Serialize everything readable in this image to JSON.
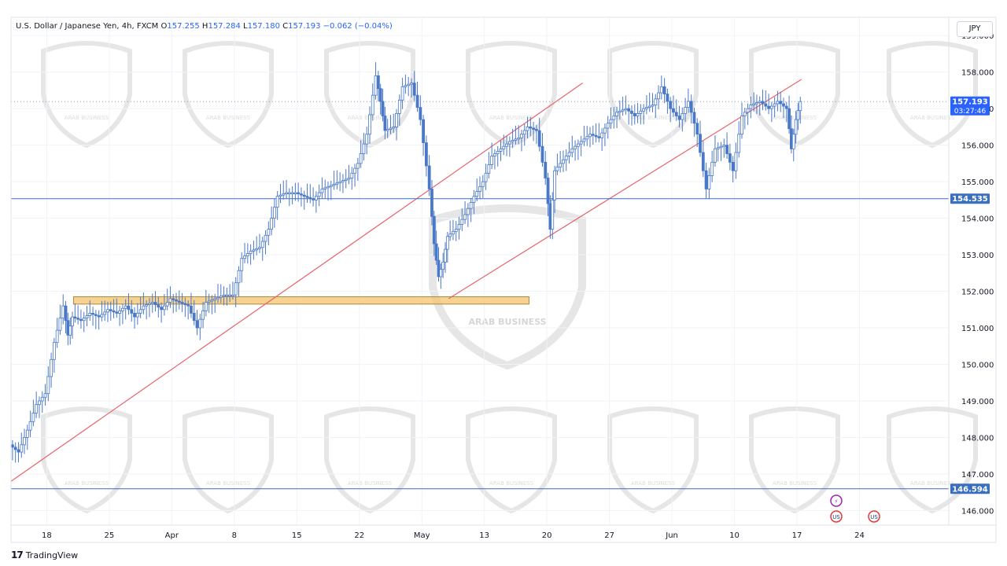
{
  "header": {
    "symbol": "U.S. Dollar / Japanese Yen, 4h, FXCM",
    "open_label": "O",
    "open": "157.255",
    "high_label": "H",
    "high": "157.284",
    "low_label": "L",
    "low": "157.180",
    "close_label": "C",
    "close": "157.193",
    "change": "−0.062 (−0.04%)"
  },
  "currency_button": "JPY",
  "footer": {
    "logo": "17",
    "brand": "TradingView"
  },
  "watermark_text": "ARAB BUSINESS",
  "colors": {
    "candle": "#4a78c8",
    "trendline": "#e8636b",
    "hline": "#3a6fbf",
    "zone_fill": "#f5c36b",
    "zone_stroke": "#a88b3a",
    "price_badge": "#2962ff",
    "grid": "#f0f3fa"
  },
  "chart_data": {
    "type": "candlestick",
    "ylim": [
      145.6,
      159.5
    ],
    "y_ticks": [
      "159.000",
      "158.000",
      "157.000",
      "156.000",
      "155.000",
      "154.000",
      "153.000",
      "152.000",
      "151.000",
      "150.000",
      "149.000",
      "148.000",
      "147.000",
      "146.000"
    ],
    "x_ticks": [
      "18",
      "25",
      "Apr",
      "8",
      "15",
      "22",
      "May",
      "13",
      "20",
      "27",
      "Jun",
      "10",
      "17",
      "24"
    ],
    "x_domain": [
      0,
      105
    ],
    "x_tick_positions": [
      4,
      11,
      18,
      25,
      32,
      39,
      46,
      53,
      60,
      67,
      74,
      81,
      88,
      95
    ],
    "price_series": [
      [
        0,
        147.8
      ],
      [
        1,
        147.6
      ],
      [
        2,
        148.2
      ],
      [
        3,
        148.9
      ],
      [
        4,
        149.2
      ],
      [
        5,
        150.6
      ],
      [
        6,
        151.6
      ],
      [
        6.5,
        150.8
      ],
      [
        7,
        151.3
      ],
      [
        8,
        151.2
      ],
      [
        9,
        151.4
      ],
      [
        10,
        151.3
      ],
      [
        11,
        151.5
      ],
      [
        12,
        151.4
      ],
      [
        13,
        151.6
      ],
      [
        14,
        151.3
      ],
      [
        15,
        151.6
      ],
      [
        16,
        151.7
      ],
      [
        17,
        151.5
      ],
      [
        18,
        151.8
      ],
      [
        19,
        151.7
      ],
      [
        20,
        151.6
      ],
      [
        21,
        151.0
      ],
      [
        22,
        151.7
      ],
      [
        23,
        151.8
      ],
      [
        24,
        151.9
      ],
      [
        25,
        151.9
      ],
      [
        26,
        152.9
      ],
      [
        27,
        153.1
      ],
      [
        28,
        153.2
      ],
      [
        29,
        153.7
      ],
      [
        30,
        154.6
      ],
      [
        31,
        154.7
      ],
      [
        32,
        154.7
      ],
      [
        33,
        154.6
      ],
      [
        34,
        154.5
      ],
      [
        35,
        154.8
      ],
      [
        36,
        154.9
      ],
      [
        37,
        155.0
      ],
      [
        38,
        155.1
      ],
      [
        39,
        155.5
      ],
      [
        40,
        156.3
      ],
      [
        41,
        157.9
      ],
      [
        41.5,
        157.2
      ],
      [
        42,
        156.4
      ],
      [
        43,
        156.5
      ],
      [
        44,
        157.6
      ],
      [
        45,
        157.7
      ],
      [
        46,
        156.7
      ],
      [
        47,
        154.8
      ],
      [
        47.5,
        153.3
      ],
      [
        48,
        152.4
      ],
      [
        48.5,
        152.8
      ],
      [
        49,
        153.5
      ],
      [
        50,
        153.7
      ],
      [
        51,
        154.1
      ],
      [
        52,
        154.6
      ],
      [
        53,
        155.0
      ],
      [
        54,
        155.7
      ],
      [
        55,
        155.9
      ],
      [
        56,
        156.1
      ],
      [
        57,
        156.2
      ],
      [
        58,
        156.5
      ],
      [
        59,
        156.4
      ],
      [
        60,
        155.1
      ],
      [
        60.5,
        153.7
      ],
      [
        61,
        155.3
      ],
      [
        62,
        155.6
      ],
      [
        63,
        155.9
      ],
      [
        64,
        156.1
      ],
      [
        65,
        156.3
      ],
      [
        66,
        156.2
      ],
      [
        67,
        156.6
      ],
      [
        68,
        156.9
      ],
      [
        69,
        157.0
      ],
      [
        70,
        156.8
      ],
      [
        71,
        157.0
      ],
      [
        72,
        157.1
      ],
      [
        73,
        157.6
      ],
      [
        74,
        157.0
      ],
      [
        75,
        156.7
      ],
      [
        76,
        157.2
      ],
      [
        77,
        156.3
      ],
      [
        78,
        154.8
      ],
      [
        79,
        155.9
      ],
      [
        80,
        156.0
      ],
      [
        81,
        155.3
      ],
      [
        82,
        156.8
      ],
      [
        83,
        157.1
      ],
      [
        84,
        157.2
      ],
      [
        85,
        157.0
      ],
      [
        86,
        157.2
      ],
      [
        87,
        157.0
      ],
      [
        87.5,
        155.9
      ],
      [
        88,
        156.7
      ],
      [
        88.5,
        157.193
      ]
    ],
    "horizontal_lines": [
      154.535,
      146.594
    ],
    "price_labels": [
      "157.193",
      "154.535",
      "146.594"
    ],
    "countdown": "03:27:46",
    "trendlines": [
      {
        "x1": 0,
        "y1": 146.8,
        "x2": 64,
        "y2": 157.7
      },
      {
        "x1": 49,
        "y1": 151.8,
        "x2": 88.5,
        "y2": 157.8
      }
    ],
    "support_zone": {
      "x1": 7,
      "x2": 58,
      "y_low": 151.65,
      "y_high": 151.85
    },
    "dotted_price_line": 157.193,
    "event_markers": [
      "⚡",
      "US",
      "US"
    ]
  }
}
